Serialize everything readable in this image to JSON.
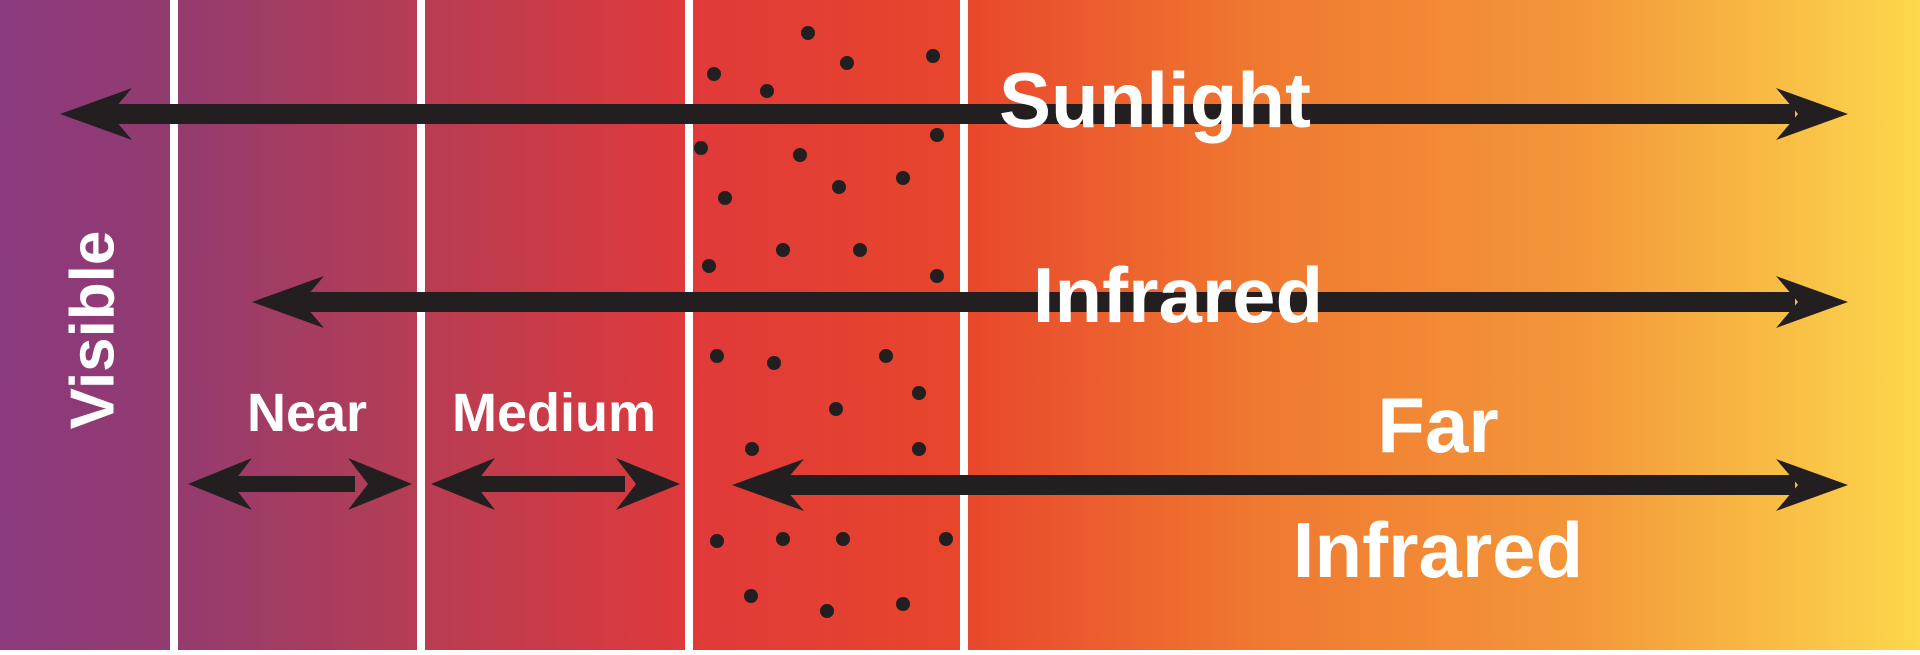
{
  "labels": {
    "visible": "Visible",
    "sunlight": "Sunlight",
    "infrared": "Infrared",
    "near": "Near",
    "medium": "Medium",
    "far_line1": "Far",
    "far_line2": "Infrared"
  },
  "colors": {
    "purple": "#8b3a7e",
    "red": "#e63a2c",
    "orange": "#f07a30",
    "yellow": "#fcd84c",
    "divider": "#ffffff",
    "arrow": "#231f20",
    "text": "#ffffff"
  }
}
